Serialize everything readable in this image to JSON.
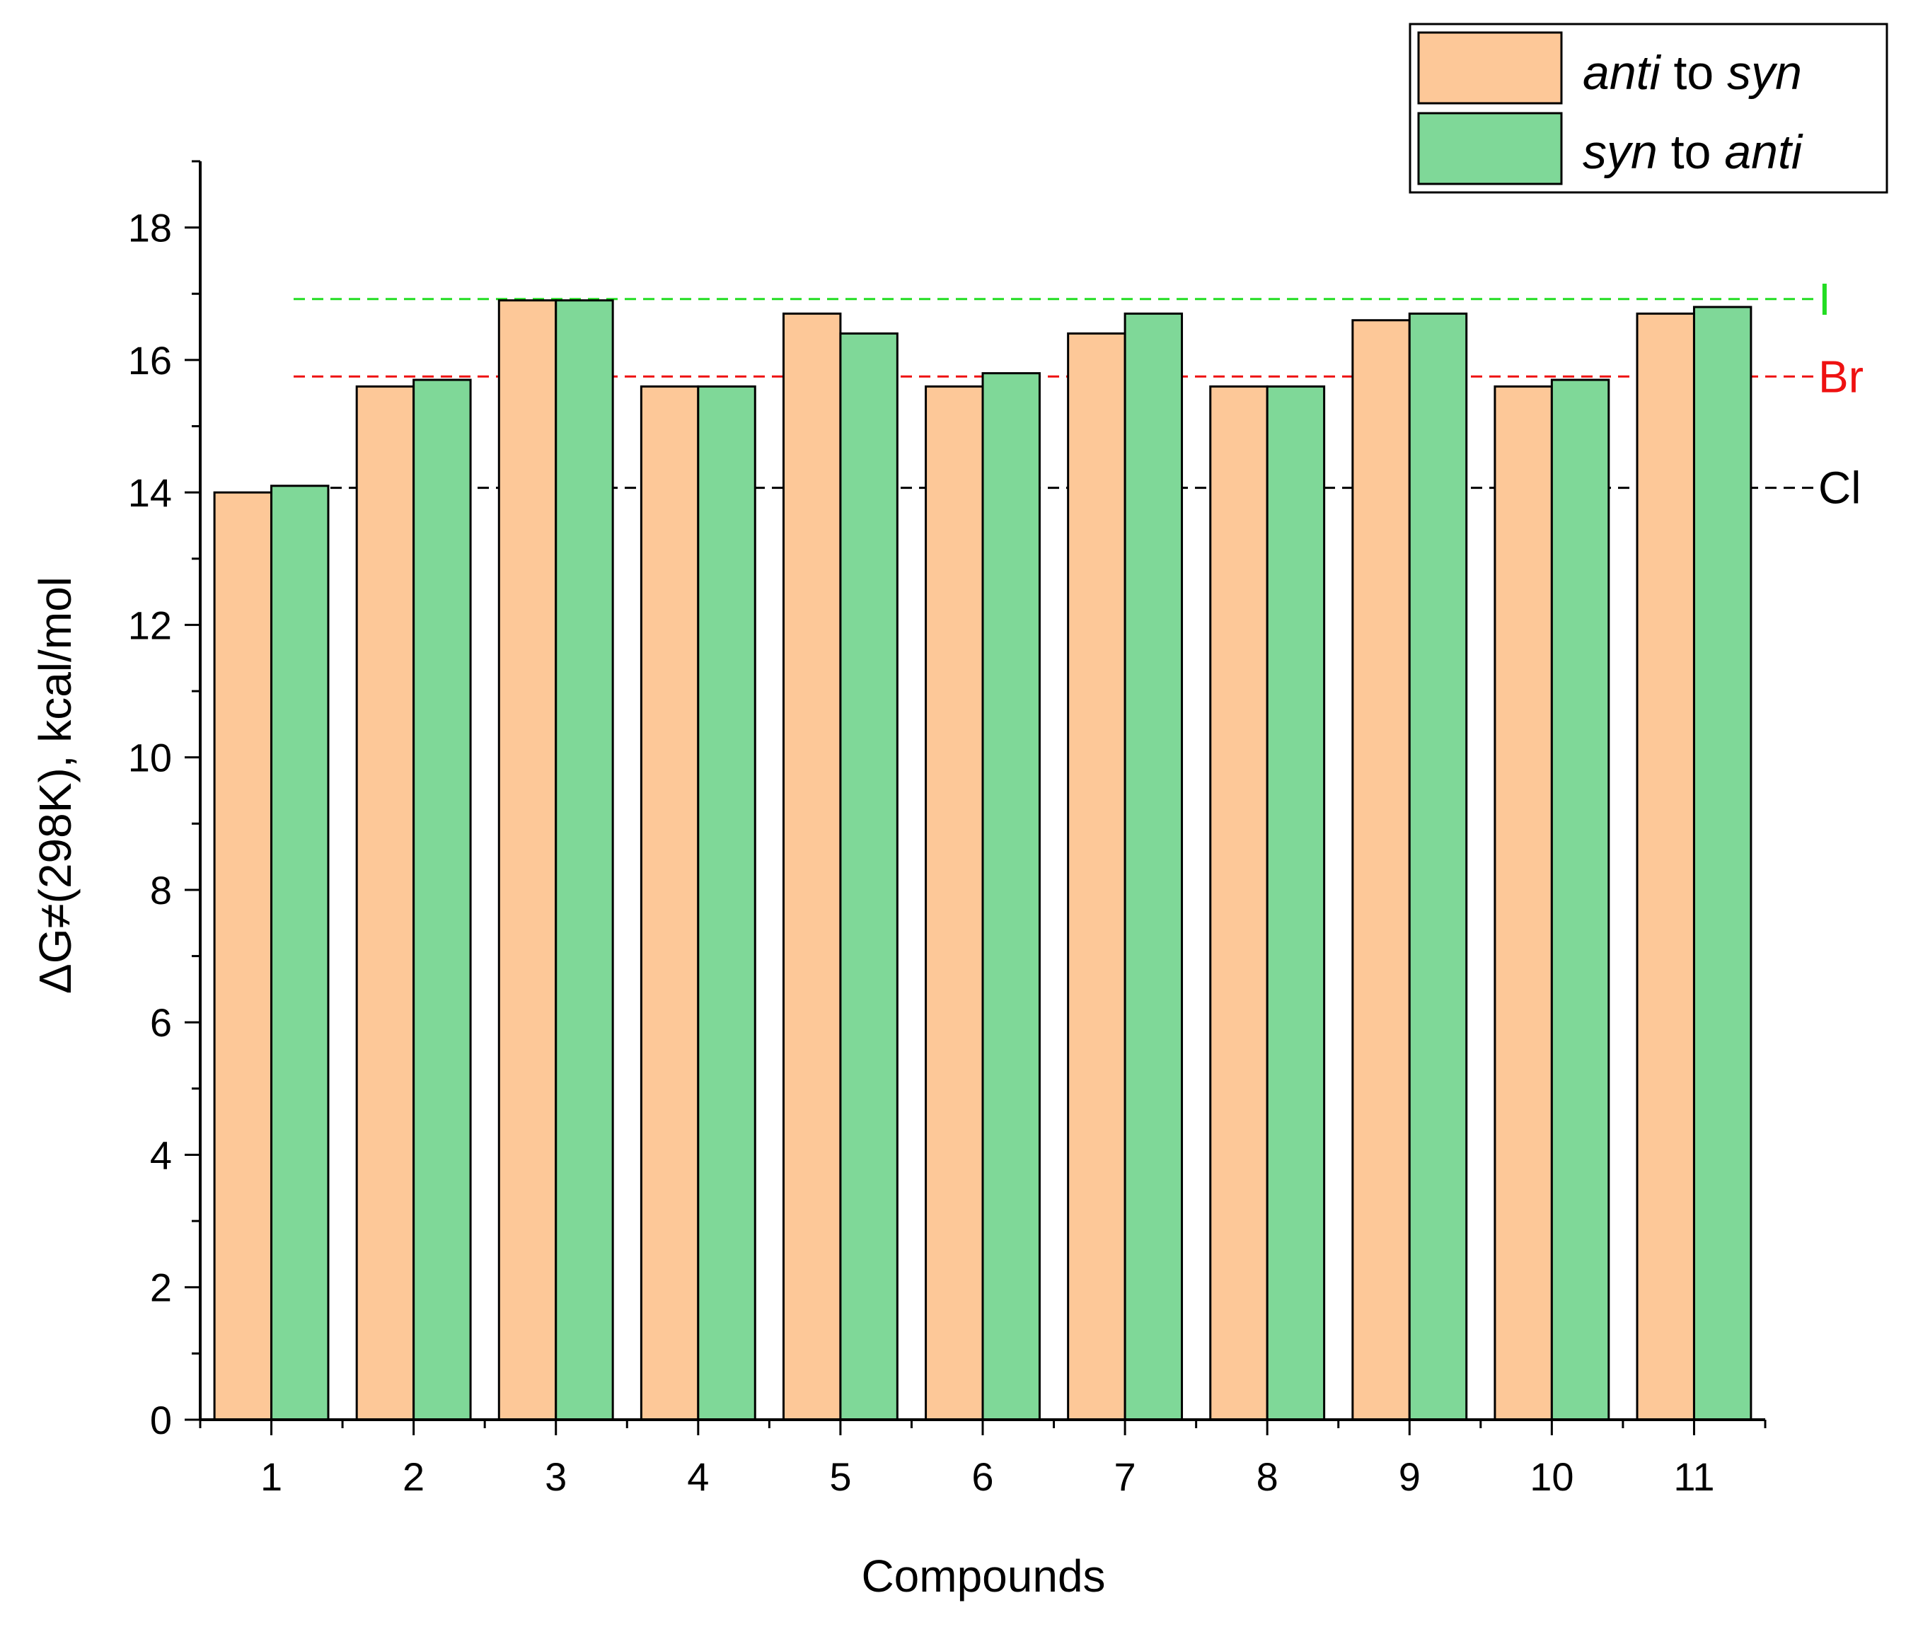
{
  "chart_data": {
    "type": "bar",
    "xlabel": "Compounds",
    "ylabel": "ΔG≠(298K), kcal/mol",
    "categories": [
      "1",
      "2",
      "3",
      "4",
      "5",
      "6",
      "7",
      "8",
      "9",
      "10",
      "11"
    ],
    "ylim": [
      0,
      19
    ],
    "y_ticks": [
      0,
      2,
      4,
      6,
      8,
      10,
      12,
      14,
      16,
      18
    ],
    "grid": false,
    "legend_position": "top-right",
    "series": [
      {
        "name_italic": "anti",
        "name_plain": " to ",
        "name_italic2": "syn",
        "color": "#FDC898",
        "values": [
          14.0,
          15.6,
          16.9,
          15.6,
          16.7,
          15.6,
          16.4,
          15.6,
          16.6,
          15.6,
          16.7
        ]
      },
      {
        "name_italic": "syn",
        "name_plain": " to ",
        "name_italic2": "anti",
        "color": "#7FD898",
        "values": [
          14.1,
          15.7,
          16.9,
          15.6,
          16.4,
          15.8,
          16.7,
          15.6,
          16.7,
          15.7,
          16.8
        ]
      }
    ],
    "reference_lines": [
      {
        "label": "I",
        "value": 16.92,
        "color": "#22DD22"
      },
      {
        "label": "Br",
        "value": 15.75,
        "color": "#EE1111"
      },
      {
        "label": "Cl",
        "value": 14.07,
        "color": "#000000"
      }
    ]
  }
}
